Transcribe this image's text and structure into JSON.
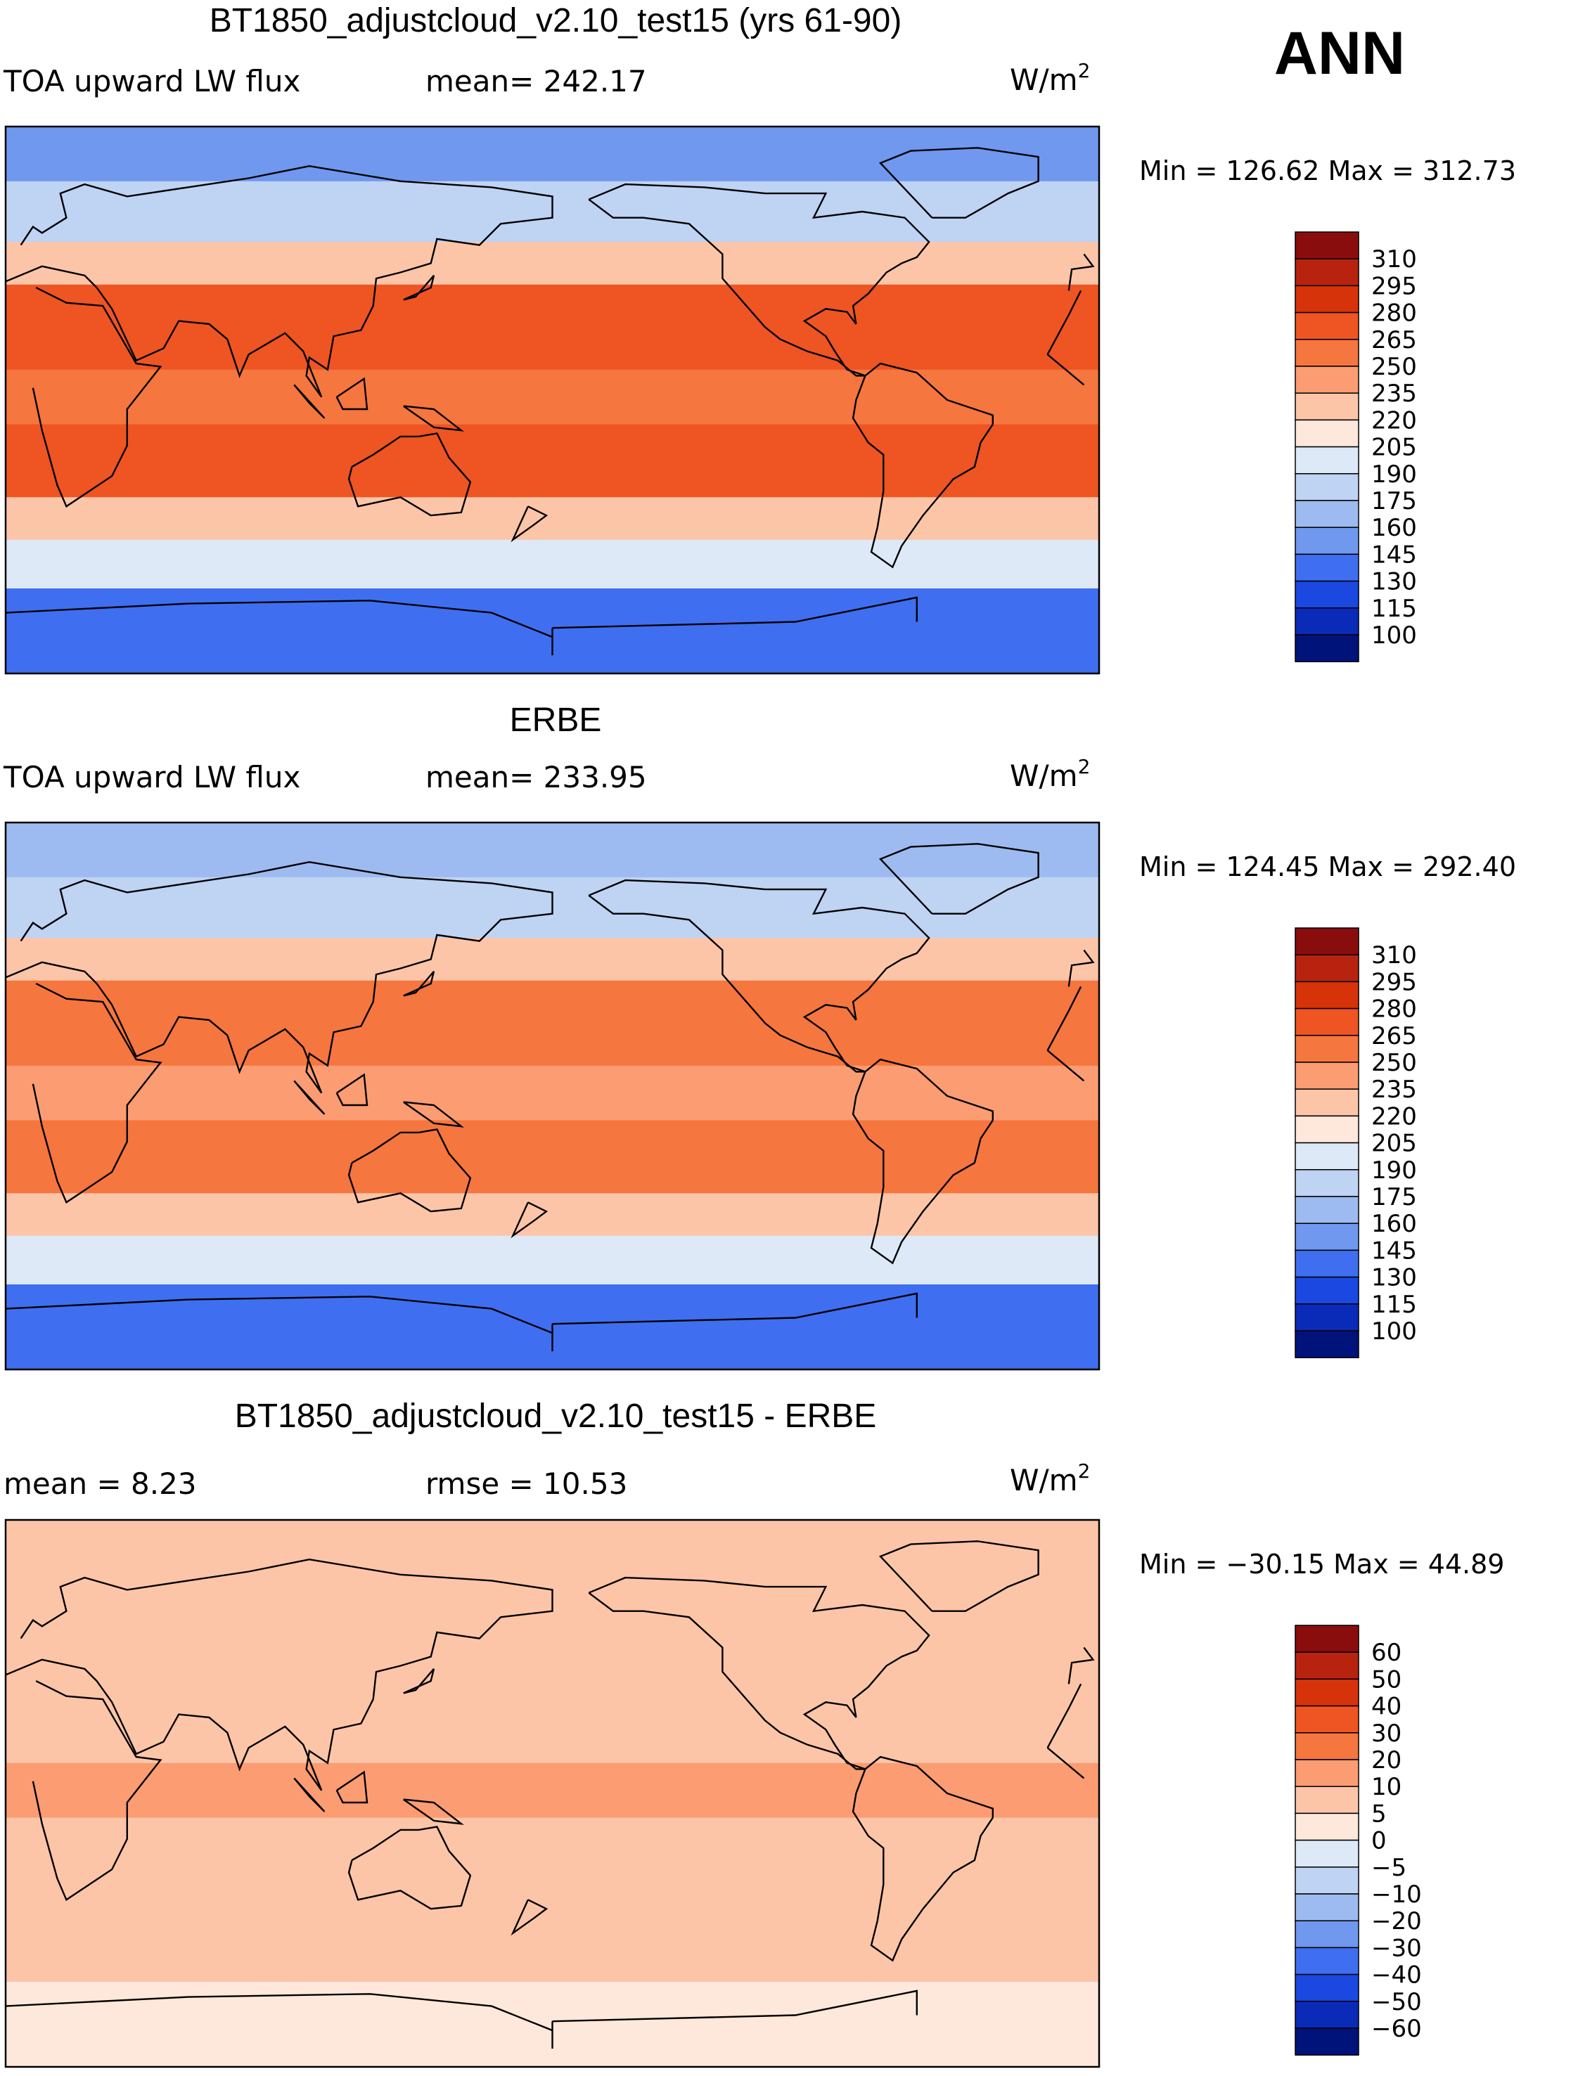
{
  "season": "ANN",
  "units_base": "W/m",
  "units_exp": "2",
  "chart_data": [
    {
      "type": "heatmap",
      "title": "BT1850_adjustcloud_v2.10_test15 (yrs 61-90)",
      "left_label": "TOA upward LW flux",
      "mid_label": "mean= 242.17",
      "mean": 242.17,
      "min_label": "Min = 126.62 Max = 312.73",
      "min": 126.62,
      "max": 312.73,
      "levels": [
        "310",
        "295",
        "280",
        "265",
        "250",
        "235",
        "220",
        "205",
        "190",
        "175",
        "160",
        "145",
        "130",
        "115",
        "100"
      ],
      "colors": [
        "#8a0d0d",
        "#b8230f",
        "#d7330a",
        "#ee5522",
        "#f5763e",
        "#fb9c72",
        "#fdc5a8",
        "#fde8db",
        "#dde9f7",
        "#bfd3f3",
        "#9dbbf0",
        "#6f98ee",
        "#3f6ff0",
        "#1a48e0",
        "#0a2ab8",
        "#00137a"
      ],
      "band_index": {
        "north_pole": 11,
        "north_high": 9,
        "north_mid": 6,
        "subtropics": 3,
        "tropics": 4,
        "south_sub": 3,
        "south_mid": 6,
        "southern_ocean": 8,
        "antarctic": 12
      }
    },
    {
      "type": "heatmap",
      "title": "ERBE",
      "left_label": "TOA upward LW flux",
      "mid_label": "mean= 233.95",
      "mean": 233.95,
      "min_label": "Min = 124.45 Max = 292.40",
      "min": 124.45,
      "max": 292.4,
      "levels": [
        "310",
        "295",
        "280",
        "265",
        "250",
        "235",
        "220",
        "205",
        "190",
        "175",
        "160",
        "145",
        "130",
        "115",
        "100"
      ],
      "colors": [
        "#8a0d0d",
        "#b8230f",
        "#d7330a",
        "#ee5522",
        "#f5763e",
        "#fb9c72",
        "#fdc5a8",
        "#fde8db",
        "#dde9f7",
        "#bfd3f3",
        "#9dbbf0",
        "#6f98ee",
        "#3f6ff0",
        "#1a48e0",
        "#0a2ab8",
        "#00137a"
      ],
      "band_index": {
        "north_pole": 10,
        "north_high": 9,
        "north_mid": 6,
        "subtropics": 4,
        "tropics": 5,
        "south_sub": 4,
        "south_mid": 6,
        "southern_ocean": 8,
        "antarctic": 12
      }
    },
    {
      "type": "heatmap",
      "title": "BT1850_adjustcloud_v2.10_test15 - ERBE",
      "left_label": "mean =    8.23",
      "mid_label": "rmse =   10.53",
      "mean": 8.23,
      "rmse": 10.53,
      "min_label": "Min = −30.15 Max =  44.89",
      "min": -30.15,
      "max": 44.89,
      "levels": [
        "60",
        "50",
        "40",
        "30",
        "20",
        "10",
        "5",
        "0",
        "−5",
        "−10",
        "−20",
        "−30",
        "−40",
        "−50",
        "−60"
      ],
      "colors": [
        "#8a0d0d",
        "#b8230f",
        "#d7330a",
        "#ee5522",
        "#f5763e",
        "#fb9c72",
        "#fdc5a8",
        "#fde8db",
        "#dde9f7",
        "#bfd3f3",
        "#9dbbf0",
        "#6f98ee",
        "#3f6ff0",
        "#1a48e0",
        "#0a2ab8",
        "#00137a"
      ],
      "band_index": {
        "north_pole": 6,
        "north_high": 6,
        "north_mid": 6,
        "subtropics": 6,
        "tropics": 5,
        "south_sub": 6,
        "south_mid": 6,
        "southern_ocean": 6,
        "antarctic": 7
      }
    }
  ]
}
